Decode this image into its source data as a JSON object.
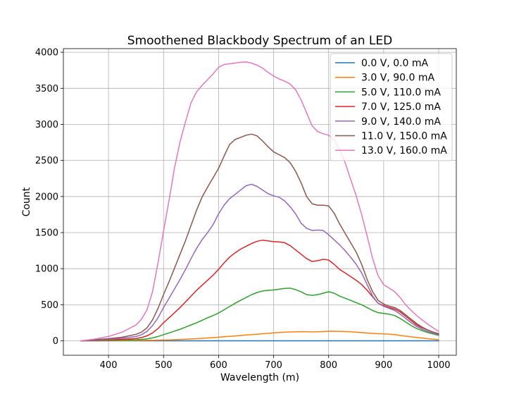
{
  "chart_data": {
    "type": "line",
    "title": "Smoothened Blackbody Spectrum of an LED",
    "xlabel": "Wavelength (m)",
    "ylabel": "Count",
    "xlim": [
      318,
      1032
    ],
    "ylim": [
      -200,
      4050
    ],
    "xticks": [
      400,
      500,
      600,
      700,
      800,
      900,
      1000
    ],
    "yticks": [
      0,
      500,
      1000,
      1500,
      2000,
      2500,
      3000,
      3500,
      4000
    ],
    "grid": true,
    "legend_position": "top-right",
    "x": [
      350,
      375,
      400,
      425,
      450,
      460,
      470,
      480,
      490,
      500,
      510,
      520,
      530,
      540,
      550,
      560,
      570,
      580,
      590,
      600,
      610,
      620,
      630,
      640,
      650,
      660,
      670,
      680,
      690,
      700,
      710,
      720,
      730,
      740,
      750,
      760,
      770,
      780,
      790,
      800,
      810,
      820,
      830,
      840,
      850,
      860,
      870,
      880,
      890,
      900,
      910,
      920,
      930,
      940,
      950,
      960,
      970,
      980,
      990,
      1000
    ],
    "series": [
      {
        "name": "0.0 V, 0.0 mA",
        "color": "#1f77b4",
        "values": [
          0,
          0,
          0,
          0,
          0,
          0,
          0,
          0,
          0,
          0,
          0,
          0,
          0,
          0,
          0,
          0,
          0,
          0,
          0,
          0,
          0,
          0,
          0,
          0,
          0,
          0,
          0,
          0,
          0,
          0,
          0,
          0,
          0,
          0,
          0,
          0,
          0,
          0,
          0,
          0,
          0,
          0,
          0,
          0,
          0,
          0,
          0,
          0,
          0,
          0,
          0,
          0,
          0,
          0,
          0,
          0,
          0,
          0,
          0,
          0
        ]
      },
      {
        "name": "3.0 V, 90.0 mA",
        "color": "#ff7f0e",
        "values": [
          0,
          1,
          2,
          3,
          5,
          6,
          7,
          8,
          10,
          11,
          13,
          16,
          19,
          22,
          26,
          30,
          34,
          39,
          44,
          50,
          56,
          62,
          68,
          74,
          80,
          86,
          92,
          98,
          104,
          110,
          115,
          119,
          122,
          125,
          127,
          126,
          123,
          125,
          128,
          132,
          133,
          131,
          128,
          124,
          119,
          114,
          109,
          103,
          98,
          95,
          92,
          85,
          75,
          65,
          55,
          46,
          38,
          30,
          22,
          15
        ]
      },
      {
        "name": "5.0 V, 110.0 mA",
        "color": "#2ca02c",
        "values": [
          0,
          3,
          6,
          10,
          15,
          20,
          28,
          40,
          60,
          85,
          110,
          135,
          160,
          190,
          220,
          250,
          285,
          320,
          350,
          385,
          430,
          475,
          520,
          560,
          600,
          640,
          670,
          690,
          700,
          705,
          715,
          725,
          730,
          710,
          680,
          640,
          630,
          640,
          660,
          680,
          660,
          620,
          590,
          560,
          530,
          500,
          460,
          420,
          390,
          380,
          370,
          350,
          310,
          260,
          210,
          170,
          140,
          115,
          95,
          75
        ]
      },
      {
        "name": "7.0 V, 125.0 mA",
        "color": "#d62728",
        "values": [
          0,
          6,
          12,
          20,
          32,
          45,
          70,
          110,
          170,
          250,
          320,
          390,
          460,
          540,
          620,
          700,
          770,
          840,
          910,
          990,
          1080,
          1160,
          1220,
          1270,
          1310,
          1350,
          1380,
          1395,
          1385,
          1375,
          1370,
          1360,
          1320,
          1260,
          1200,
          1140,
          1100,
          1110,
          1130,
          1120,
          1060,
          990,
          940,
          890,
          840,
          780,
          700,
          610,
          520,
          490,
          460,
          440,
          400,
          340,
          280,
          220,
          180,
          150,
          120,
          95
        ]
      },
      {
        "name": "9.0 V, 140.0 mA",
        "color": "#9467bd",
        "values": [
          0,
          10,
          20,
          35,
          60,
          85,
          130,
          210,
          320,
          460,
          590,
          720,
          850,
          990,
          1140,
          1280,
          1400,
          1500,
          1610,
          1760,
          1880,
          1970,
          2030,
          2090,
          2150,
          2170,
          2140,
          2090,
          2040,
          2010,
          1990,
          1940,
          1860,
          1760,
          1630,
          1560,
          1530,
          1535,
          1530,
          1470,
          1400,
          1330,
          1250,
          1160,
          1060,
          940,
          780,
          620,
          520,
          480,
          450,
          420,
          370,
          310,
          250,
          200,
          160,
          130,
          105,
          85
        ]
      },
      {
        "name": "11.0 V, 150.0 mA",
        "color": "#8c564b",
        "values": [
          0,
          15,
          30,
          50,
          90,
          120,
          180,
          290,
          450,
          640,
          820,
          1010,
          1200,
          1390,
          1600,
          1810,
          1990,
          2130,
          2260,
          2390,
          2560,
          2720,
          2790,
          2820,
          2850,
          2865,
          2840,
          2770,
          2690,
          2620,
          2580,
          2540,
          2470,
          2350,
          2190,
          2000,
          1900,
          1880,
          1880,
          1870,
          1770,
          1620,
          1490,
          1360,
          1230,
          1060,
          850,
          680,
          560,
          510,
          480,
          460,
          420,
          360,
          300,
          240,
          190,
          150,
          120,
          100
        ]
      },
      {
        "name": "13.0 V, 160.0 mA",
        "color": "#e377c2",
        "values": [
          0,
          25,
          60,
          120,
          220,
          300,
          430,
          680,
          1080,
          1520,
          1950,
          2400,
          2760,
          3040,
          3300,
          3450,
          3540,
          3620,
          3700,
          3790,
          3830,
          3840,
          3850,
          3860,
          3865,
          3850,
          3820,
          3780,
          3720,
          3670,
          3630,
          3600,
          3560,
          3480,
          3340,
          3160,
          2980,
          2900,
          2870,
          2850,
          2780,
          2650,
          2470,
          2240,
          2010,
          1750,
          1450,
          1140,
          900,
          780,
          730,
          680,
          600,
          500,
          420,
          350,
          290,
          230,
          180,
          130
        ]
      }
    ]
  }
}
